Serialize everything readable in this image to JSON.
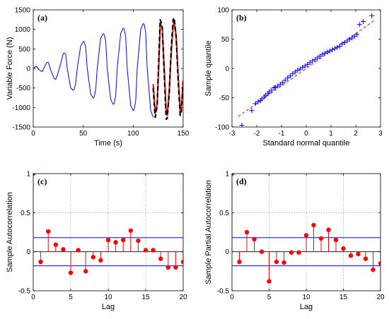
{
  "chart_data": [
    {
      "type": "line",
      "panel_label": "(a)",
      "xlabel": "Time (s)",
      "ylabel": "Variable Force (N)",
      "xlim": [
        0,
        150
      ],
      "ylim": [
        -1500,
        1500
      ],
      "xticks": [
        0,
        50,
        100,
        150
      ],
      "yticks": [
        -1500,
        -1000,
        -500,
        0,
        500,
        1000,
        1500
      ],
      "grid": false,
      "series": [
        {
          "color": "#0000ff",
          "style": "solid",
          "x": [
            0,
            3,
            6,
            9,
            12,
            13.5,
            15,
            18,
            21,
            22.5,
            24,
            27,
            30,
            31,
            32.5,
            34,
            37.5,
            40,
            41,
            42.5,
            44,
            47.5,
            50,
            51,
            52.5,
            54,
            57.5,
            60,
            61,
            62.5,
            64,
            67.5,
            70,
            71,
            72.5,
            74,
            77.5,
            80,
            81,
            82.5,
            84,
            87.5,
            90,
            91,
            92.5,
            94,
            97.5,
            100,
            101,
            102.5,
            104,
            107.5,
            110,
            111,
            112.5,
            114,
            117.5,
            120
          ],
          "y": [
            0,
            60,
            -40,
            -80,
            80,
            150,
            160,
            -80,
            -260,
            -280,
            -180,
            80,
            380,
            400,
            360,
            0,
            -500,
            -560,
            -530,
            -380,
            0,
            580,
            690,
            680,
            540,
            0,
            -660,
            -760,
            -730,
            -540,
            0,
            780,
            890,
            870,
            700,
            0,
            -800,
            -920,
            -900,
            -700,
            0,
            900,
            1030,
            1010,
            800,
            0,
            -950,
            -1080,
            -1050,
            -830,
            0,
            1000,
            1150,
            1130,
            920,
            0,
            -1080,
            -1250
          ]
        },
        {
          "color": "#ff0000",
          "style": "solid",
          "x": [
            120,
            122,
            124,
            126,
            127,
            129,
            131,
            133,
            134,
            136,
            138,
            140,
            141,
            143,
            145,
            147,
            148,
            150
          ],
          "y": [
            -400,
            -1150,
            -900,
            400,
            1150,
            1050,
            0,
            -1150,
            -1200,
            -600,
            400,
            1100,
            1200,
            800,
            -200,
            -1100,
            -1050,
            -300
          ]
        },
        {
          "color": "#000000",
          "style": "dashed",
          "x": [
            120,
            122,
            124,
            126,
            127,
            129,
            131,
            133,
            134,
            136,
            138,
            140,
            141,
            143,
            145,
            147,
            148,
            150
          ],
          "y": [
            -500,
            -1250,
            -950,
            500,
            1250,
            1100,
            -100,
            -1300,
            -1280,
            -650,
            500,
            1250,
            1300,
            800,
            -300,
            -1200,
            -1150,
            -350
          ]
        }
      ]
    },
    {
      "type": "scatter",
      "panel_label": "(b)",
      "xlabel": "Standard normal quantile",
      "ylabel": "Sample quantile",
      "xlim": [
        -3,
        3
      ],
      "ylim": [
        -100,
        100
      ],
      "xticks": [
        -3,
        -2,
        -1,
        0,
        1,
        2,
        3
      ],
      "yticks": [
        -100,
        -50,
        0,
        50,
        100
      ],
      "grid": false,
      "marker": "+",
      "marker_color": "#0000ff",
      "x": [
        -2.6,
        -2.2,
        -2.05,
        -1.95,
        -1.85,
        -1.8,
        -1.7,
        -1.65,
        -1.55,
        -1.5,
        -1.4,
        -1.3,
        -1.25,
        -1.15,
        -1.05,
        -0.95,
        -0.85,
        -0.75,
        -0.65,
        -0.55,
        -0.45,
        -0.35,
        -0.25,
        -0.15,
        -0.05,
        0.05,
        0.15,
        0.25,
        0.35,
        0.45,
        0.55,
        0.65,
        0.75,
        0.85,
        0.95,
        1.05,
        1.15,
        1.25,
        1.35,
        1.45,
        1.55,
        1.65,
        1.75,
        1.85,
        1.95,
        2.05,
        2.15,
        2.3,
        2.65
      ],
      "y": [
        -97,
        -72,
        -60,
        -57,
        -55,
        -52,
        -49,
        -46,
        -43,
        -40,
        -37,
        -33,
        -32,
        -30,
        -27,
        -24,
        -20,
        -16,
        -13,
        -9,
        -6,
        -3,
        -1,
        2,
        4,
        7,
        10,
        13,
        15,
        18,
        21,
        24,
        26,
        28,
        30,
        32,
        34,
        36,
        38,
        42,
        44,
        47,
        50,
        52,
        55,
        58,
        75,
        80,
        90
      ],
      "reference_line": {
        "color": "#ff0000",
        "style": "dashed",
        "x": [
          -2.75,
          2.75
        ],
        "y": [
          -82,
          82
        ]
      }
    },
    {
      "type": "stem",
      "panel_label": "(c)",
      "xlabel": "Lag",
      "ylabel": "Sample Autocorrelation",
      "xlim": [
        0,
        20
      ],
      "ylim": [
        -0.5,
        1
      ],
      "xticks": [
        0,
        5,
        10,
        15,
        20
      ],
      "yticks": [
        -0.5,
        0,
        0.5,
        1
      ],
      "grid": true,
      "stem_color": "#ff0000",
      "lags": [
        0,
        1,
        2,
        3,
        4,
        5,
        6,
        7,
        8,
        9,
        10,
        11,
        12,
        13,
        14,
        15,
        16,
        17,
        18,
        19,
        20
      ],
      "values": [
        1.0,
        -0.13,
        0.26,
        0.09,
        0.03,
        -0.27,
        0.02,
        -0.25,
        -0.07,
        -0.11,
        0.15,
        0.12,
        0.15,
        0.27,
        0.14,
        0.02,
        0.02,
        -0.09,
        -0.2,
        -0.2,
        -0.13
      ],
      "bounds": [
        0.18,
        -0.18
      ],
      "bounds_color": "#0000ff"
    },
    {
      "type": "stem",
      "panel_label": "(d)",
      "xlabel": "Lag",
      "ylabel": "Sample Partial Autocorrelation",
      "xlim": [
        0,
        20
      ],
      "ylim": [
        -0.5,
        1
      ],
      "xticks": [
        0,
        5,
        10,
        15,
        20
      ],
      "yticks": [
        -0.5,
        0,
        0.5,
        1
      ],
      "grid": true,
      "stem_color": "#ff0000",
      "lags": [
        0,
        1,
        2,
        3,
        4,
        5,
        6,
        7,
        8,
        9,
        10,
        11,
        12,
        13,
        14,
        15,
        16,
        17,
        18,
        19,
        20
      ],
      "values": [
        1.0,
        -0.13,
        0.25,
        0.16,
        0.0,
        -0.38,
        -0.13,
        -0.14,
        -0.01,
        -0.01,
        0.21,
        0.34,
        0.17,
        0.28,
        0.15,
        0.04,
        -0.05,
        -0.03,
        -0.09,
        -0.23,
        -0.15
      ],
      "bounds": [
        0.18,
        -0.18
      ],
      "bounds_color": "#0000ff"
    }
  ]
}
